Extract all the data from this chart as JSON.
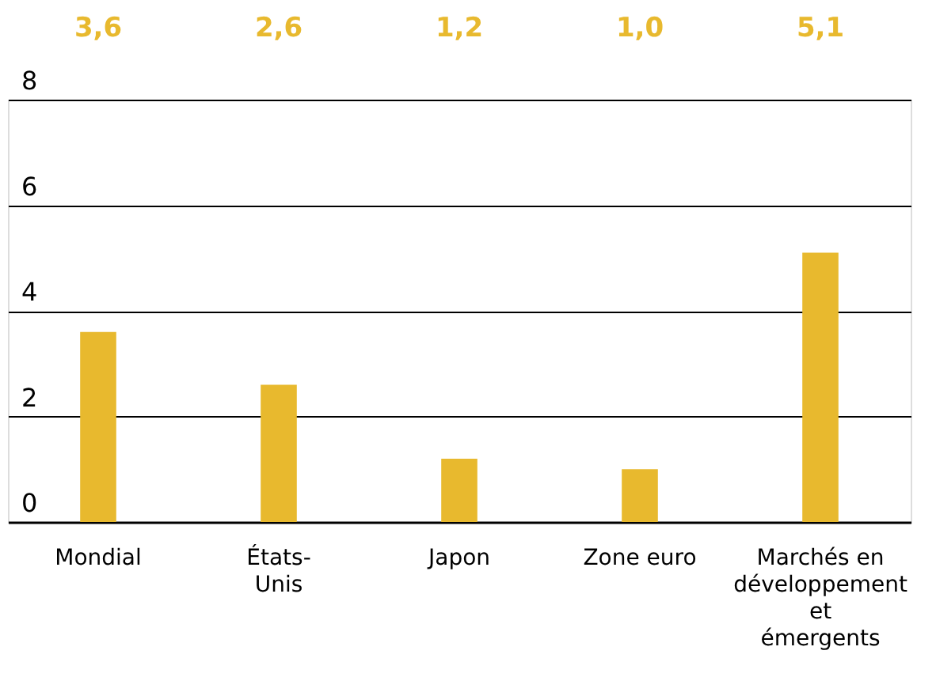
{
  "chart_data": {
    "type": "bar",
    "categories": [
      "Mondial",
      "États-Unis",
      "Japon",
      "Zone euro",
      "Marchés en développement et émergents"
    ],
    "values": [
      3.6,
      2.6,
      1.2,
      1.0,
      5.1
    ],
    "value_labels": [
      "3,6",
      "2,6",
      "1,2",
      "1,0",
      "5,1"
    ],
    "color": "#e8b92e",
    "ylim": [
      0,
      8
    ],
    "yticks": [
      0,
      2,
      4,
      6,
      8
    ],
    "grid": "y"
  }
}
